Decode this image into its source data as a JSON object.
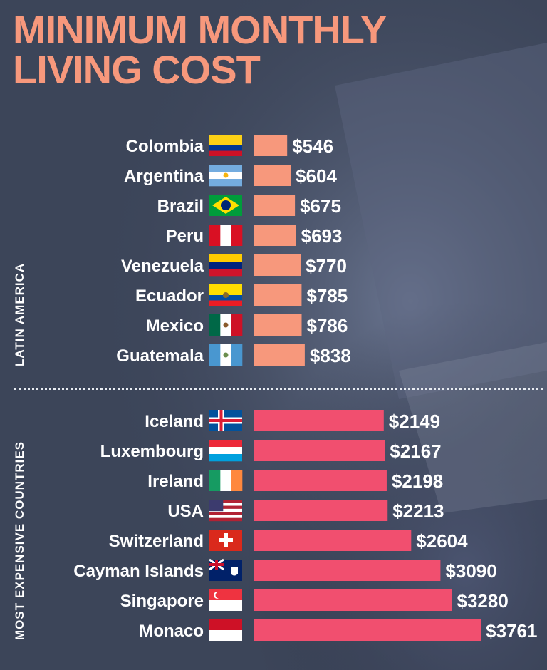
{
  "title": "MINIMUM MONTHLY\nLIVING COST",
  "colors": {
    "title": "#f7987c",
    "latam_bar": "#f7987c",
    "expensive_bar": "#f14f6f",
    "background": "#3a4357"
  },
  "chart_data": [
    {
      "type": "bar",
      "orientation": "horizontal",
      "group_label": "LATIN AMERICA",
      "categories": [
        "Colombia",
        "Argentina",
        "Brazil",
        "Peru",
        "Venezuela",
        "Ecuador",
        "Mexico",
        "Guatemala"
      ],
      "values": [
        546,
        604,
        675,
        693,
        770,
        785,
        786,
        838
      ],
      "value_labels": [
        "$546",
        "$604",
        "$675",
        "$693",
        "$770",
        "$785",
        "$786",
        "$838"
      ],
      "flags": [
        "colombia-flag",
        "argentina-flag",
        "brazil-flag",
        "peru-flag",
        "venezuela-flag",
        "ecuador-flag",
        "mexico-flag",
        "guatemala-flag"
      ],
      "bar_color": "#f7987c"
    },
    {
      "type": "bar",
      "orientation": "horizontal",
      "group_label": "MOST EXPENSIVE COUNTRIES",
      "categories": [
        "Iceland",
        "Luxembourg",
        "Ireland",
        "USA",
        "Switzerland",
        "Cayman Islands",
        "Singapore",
        "Monaco"
      ],
      "values": [
        2149,
        2167,
        2198,
        2213,
        2604,
        3090,
        3280,
        3761
      ],
      "value_labels": [
        "$2149",
        "$2167",
        "$2198",
        "$2213",
        "$2604",
        "$3090",
        "$3280",
        "$3761"
      ],
      "flags": [
        "iceland-flag",
        "luxembourg-flag",
        "ireland-flag",
        "usa-flag",
        "switzerland-flag",
        "cayman-islands-flag",
        "singapore-flag",
        "monaco-flag"
      ],
      "bar_color": "#f14f6f"
    }
  ]
}
